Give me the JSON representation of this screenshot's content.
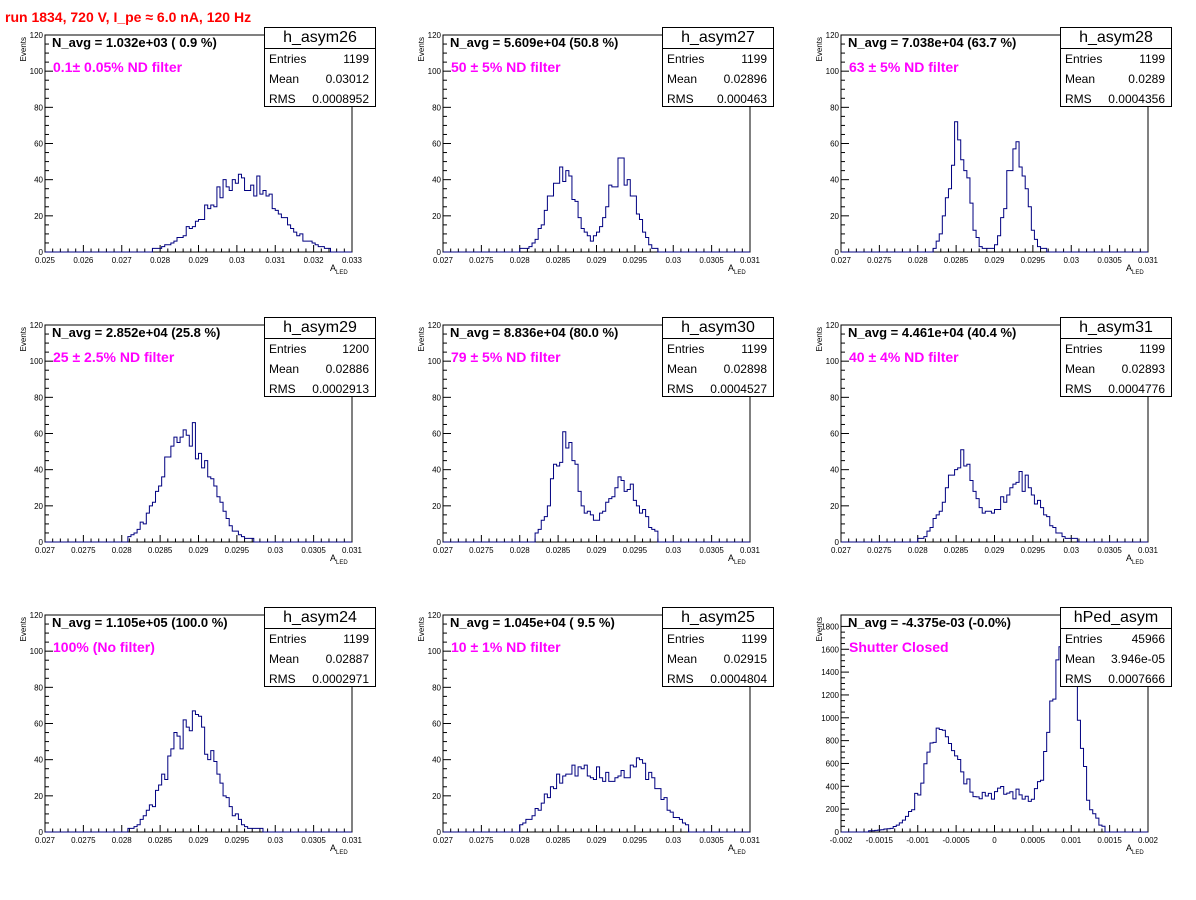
{
  "page_title": "run 1834,   720 V, I_pe ≈ 6.0 nA, 120 Hz",
  "labels": {
    "entries": "Entries",
    "mean": "Mean",
    "rms": "RMS",
    "yaxis": "Events",
    "xaxis_main": "A",
    "xaxis_sub": "LED"
  },
  "colors": {
    "histogram": "#000080",
    "title": "#ff0000",
    "filter_text": "#ff00ff"
  },
  "chart_data": [
    {
      "type": "bar",
      "name": "h_asym26",
      "navg": "N_avg = 1.032e+03 ( 0.9 %)",
      "filter": "0.1± 0.05% ND filter",
      "entries": "1199",
      "mean": "0.03012",
      "rms": "0.0008952",
      "xlim": [
        0.025,
        0.033
      ],
      "ylim": [
        0,
        120
      ],
      "xticks": [
        "0.025",
        "0.026",
        "0.027",
        "0.028",
        "0.029",
        "0.03",
        "0.031",
        "0.032",
        "0.033"
      ],
      "yticks": [
        "0",
        "20",
        "40",
        "60",
        "80",
        "100",
        "120"
      ],
      "peaks": [
        {
          "mu": 0.03012,
          "sigma": 0.0009,
          "amp": 40
        }
      ],
      "range": [
        0.0278,
        0.0324
      ]
    },
    {
      "type": "bar",
      "name": "h_asym27",
      "navg": "N_avg = 5.609e+04 (50.8 %)",
      "filter": "50 ± 5% ND filter",
      "entries": "1199",
      "mean": "0.02896",
      "rms": "0.000463",
      "xlim": [
        0.027,
        0.031
      ],
      "ylim": [
        0,
        120
      ],
      "xticks": [
        "0.027",
        "0.0275",
        "0.028",
        "0.0285",
        "0.029",
        "0.0295",
        "0.03",
        "0.0305",
        "0.031"
      ],
      "yticks": [
        "0",
        "20",
        "40",
        "60",
        "80",
        "100",
        "120"
      ],
      "peaks": [
        {
          "mu": 0.02855,
          "sigma": 0.00018,
          "amp": 45
        },
        {
          "mu": 0.02933,
          "sigma": 0.00017,
          "amp": 47
        }
      ],
      "range": [
        0.028,
        0.0298
      ]
    },
    {
      "type": "bar",
      "name": "h_asym28",
      "navg": "N_avg = 7.038e+04 (63.7 %)",
      "filter": "63 ± 5% ND filter",
      "entries": "1199",
      "mean": "0.0289",
      "rms": "0.0004356",
      "xlim": [
        0.027,
        0.031
      ],
      "ylim": [
        0,
        120
      ],
      "xticks": [
        "0.027",
        "0.0275",
        "0.028",
        "0.0285",
        "0.029",
        "0.0295",
        "0.03",
        "0.0305",
        "0.031"
      ],
      "yticks": [
        "0",
        "20",
        "40",
        "60",
        "80",
        "100",
        "120"
      ],
      "peaks": [
        {
          "mu": 0.02853,
          "sigma": 0.00012,
          "amp": 64
        },
        {
          "mu": 0.02929,
          "sigma": 0.00012,
          "amp": 60
        }
      ],
      "range": [
        0.0282,
        0.0297
      ]
    },
    {
      "type": "bar",
      "name": "h_asym29",
      "navg": "N_avg = 2.852e+04 (25.8 %)",
      "filter": "25 ± 2.5% ND filter",
      "entries": "1200",
      "mean": "0.02886",
      "rms": "0.0002913",
      "xlim": [
        0.027,
        0.031
      ],
      "ylim": [
        0,
        120
      ],
      "xticks": [
        "0.027",
        "0.0275",
        "0.028",
        "0.0285",
        "0.029",
        "0.0295",
        "0.03",
        "0.0305",
        "0.031"
      ],
      "yticks": [
        "0",
        "20",
        "40",
        "60",
        "80",
        "100",
        "120"
      ],
      "peaks": [
        {
          "mu": 0.02884,
          "sigma": 0.0003,
          "amp": 62
        }
      ],
      "range": [
        0.0281,
        0.0297
      ]
    },
    {
      "type": "bar",
      "name": "h_asym30",
      "navg": "N_avg = 8.836e+04 (80.0 %)",
      "filter": "79 ± 5% ND filter",
      "entries": "1199",
      "mean": "0.02898",
      "rms": "0.0004527",
      "xlim": [
        0.027,
        0.031
      ],
      "ylim": [
        0,
        120
      ],
      "xticks": [
        "0.027",
        "0.0275",
        "0.028",
        "0.0285",
        "0.029",
        "0.0295",
        "0.03",
        "0.0305",
        "0.031"
      ],
      "yticks": [
        "0",
        "20",
        "40",
        "60",
        "80",
        "100",
        "120"
      ],
      "peaks": [
        {
          "mu": 0.0286,
          "sigma": 0.00017,
          "amp": 52
        },
        {
          "mu": 0.02935,
          "sigma": 0.00022,
          "amp": 34
        }
      ],
      "range": [
        0.0282,
        0.0298
      ]
    },
    {
      "type": "bar",
      "name": "h_asym31",
      "navg": "N_avg = 4.461e+04 (40.4 %)",
      "filter": "40 ± 4% ND filter",
      "entries": "1199",
      "mean": "0.02893",
      "rms": "0.0004776",
      "xlim": [
        0.027,
        0.031
      ],
      "ylim": [
        0,
        120
      ],
      "xticks": [
        "0.027",
        "0.0275",
        "0.028",
        "0.0285",
        "0.029",
        "0.0295",
        "0.03",
        "0.0305",
        "0.031"
      ],
      "yticks": [
        "0",
        "20",
        "40",
        "60",
        "80",
        "100",
        "120"
      ],
      "peaks": [
        {
          "mu": 0.02855,
          "sigma": 0.0002,
          "amp": 44
        },
        {
          "mu": 0.02935,
          "sigma": 0.00025,
          "amp": 34
        }
      ],
      "range": [
        0.028,
        0.0301
      ]
    },
    {
      "type": "bar",
      "name": "h_asym24",
      "navg": "N_avg = 1.105e+05 (100.0 %)",
      "filter": "100% (No filter)",
      "entries": "1199",
      "mean": "0.02887",
      "rms": "0.0002971",
      "xlim": [
        0.027,
        0.031
      ],
      "ylim": [
        0,
        120
      ],
      "xticks": [
        "0.027",
        "0.0275",
        "0.028",
        "0.0285",
        "0.029",
        "0.0295",
        "0.03",
        "0.0305",
        "0.031"
      ],
      "yticks": [
        "0",
        "20",
        "40",
        "60",
        "80",
        "100",
        "120"
      ],
      "peaks": [
        {
          "mu": 0.0289,
          "sigma": 0.0003,
          "amp": 60
        }
      ],
      "range": [
        0.0281,
        0.0299
      ]
    },
    {
      "type": "bar",
      "name": "h_asym25",
      "navg": "N_avg = 1.045e+04 ( 9.5 %)",
      "filter": "10 ± 1% ND filter",
      "entries": "1199",
      "mean": "0.02915",
      "rms": "0.0004804",
      "xlim": [
        0.027,
        0.031
      ],
      "ylim": [
        0,
        120
      ],
      "xticks": [
        "0.027",
        "0.0275",
        "0.028",
        "0.0285",
        "0.029",
        "0.0295",
        "0.03",
        "0.0305",
        "0.031"
      ],
      "yticks": [
        "0",
        "20",
        "40",
        "60",
        "80",
        "100",
        "120"
      ],
      "peaks": [
        {
          "mu": 0.02875,
          "sigma": 0.00035,
          "amp": 36
        },
        {
          "mu": 0.02955,
          "sigma": 0.0003,
          "amp": 33
        }
      ],
      "range": [
        0.028,
        0.0302
      ]
    },
    {
      "type": "bar",
      "name": "hPed_asym",
      "navg": "N_avg = -4.375e-03 (-0.0%)",
      "filter": "Shutter Closed",
      "entries": "45966",
      "mean": "3.946e-05",
      "rms": "0.0007666",
      "xlim": [
        -0.002,
        0.002
      ],
      "ylim": [
        0,
        1900
      ],
      "xticks": [
        "-0.002",
        "-0.0015",
        "-0.001",
        "-0.0005",
        "0",
        "0.0005",
        "0.001",
        "0.0015",
        "0.002"
      ],
      "yticks": [
        "0",
        "200",
        "400",
        "600",
        "800",
        "1000",
        "1200",
        "1400",
        "1600",
        "1800"
      ],
      "peaks": [
        {
          "mu": -0.0007,
          "sigma": 0.0002,
          "amp": 820
        },
        {
          "mu": 0.00092,
          "sigma": 0.00016,
          "amp": 1500
        },
        {
          "mu": 0.0001,
          "sigma": 0.00065,
          "amp": 340
        }
      ],
      "range": [
        -0.00165,
        0.00145
      ]
    }
  ]
}
